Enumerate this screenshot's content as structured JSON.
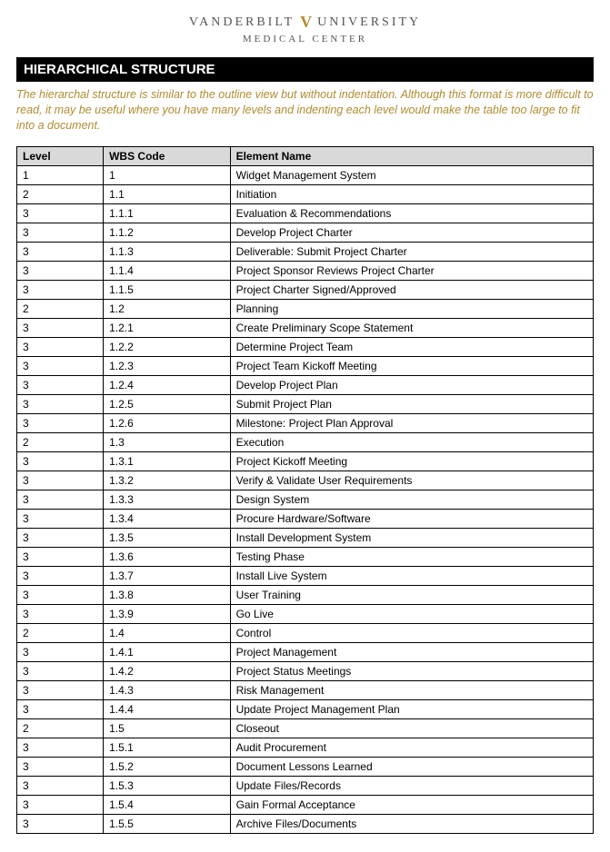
{
  "logo": {
    "left": "VANDERBILT",
    "right": "UNIVERSITY",
    "sub": "MEDICAL CENTER",
    "v": "V"
  },
  "section_title": "HIERARCHICAL STRUCTURE",
  "description": "The hierarchal structure is similar to the outline view but without indentation.  Although this format is more difficult to read, it may be useful where you have many levels and indenting each level would make the table too large to fit into a document.",
  "table": {
    "columns": [
      "Level",
      "WBS Code",
      "Element Name"
    ],
    "rows": [
      [
        "1",
        "1",
        "Widget Management System"
      ],
      [
        "2",
        "1.1",
        "Initiation"
      ],
      [
        "3",
        "1.1.1",
        "Evaluation & Recommendations"
      ],
      [
        "3",
        "1.1.2",
        "Develop Project Charter"
      ],
      [
        "3",
        "1.1.3",
        "Deliverable: Submit Project Charter"
      ],
      [
        "3",
        "1.1.4",
        "Project Sponsor Reviews Project Charter"
      ],
      [
        "3",
        "1.1.5",
        "Project Charter Signed/Approved"
      ],
      [
        "2",
        "1.2",
        "Planning"
      ],
      [
        "3",
        "1.2.1",
        "Create Preliminary Scope Statement"
      ],
      [
        "3",
        "1.2.2",
        "Determine Project Team"
      ],
      [
        "3",
        "1.2.3",
        "Project Team Kickoff Meeting"
      ],
      [
        "3",
        "1.2.4",
        "Develop Project Plan"
      ],
      [
        "3",
        "1.2.5",
        "Submit Project Plan"
      ],
      [
        "3",
        "1.2.6",
        "Milestone: Project Plan Approval"
      ],
      [
        "2",
        "1.3",
        "Execution"
      ],
      [
        "3",
        "1.3.1",
        "Project Kickoff Meeting"
      ],
      [
        "3",
        "1.3.2",
        "Verify & Validate User Requirements"
      ],
      [
        "3",
        "1.3.3",
        "Design System"
      ],
      [
        "3",
        "1.3.4",
        "Procure Hardware/Software"
      ],
      [
        "3",
        "1.3.5",
        "Install Development System"
      ],
      [
        "3",
        "1.3.6",
        "Testing Phase"
      ],
      [
        "3",
        "1.3.7",
        "Install Live System"
      ],
      [
        "3",
        "1.3.8",
        "User Training"
      ],
      [
        "3",
        "1.3.9",
        "Go Live"
      ],
      [
        "2",
        "1.4",
        "Control"
      ],
      [
        "3",
        "1.4.1",
        "Project Management"
      ],
      [
        "3",
        "1.4.2",
        "Project Status Meetings"
      ],
      [
        "3",
        "1.4.3",
        "Risk Management"
      ],
      [
        "3",
        "1.4.4",
        "Update Project Management Plan"
      ],
      [
        "2",
        "1.5",
        "Closeout"
      ],
      [
        "3",
        "1.5.1",
        "Audit Procurement"
      ],
      [
        "3",
        "1.5.2",
        "Document Lessons Learned"
      ],
      [
        "3",
        "1.5.3",
        "Update Files/Records"
      ],
      [
        "3",
        "1.5.4",
        "Gain Formal Acceptance"
      ],
      [
        "3",
        "1.5.5",
        "Archive Files/Documents"
      ]
    ]
  }
}
